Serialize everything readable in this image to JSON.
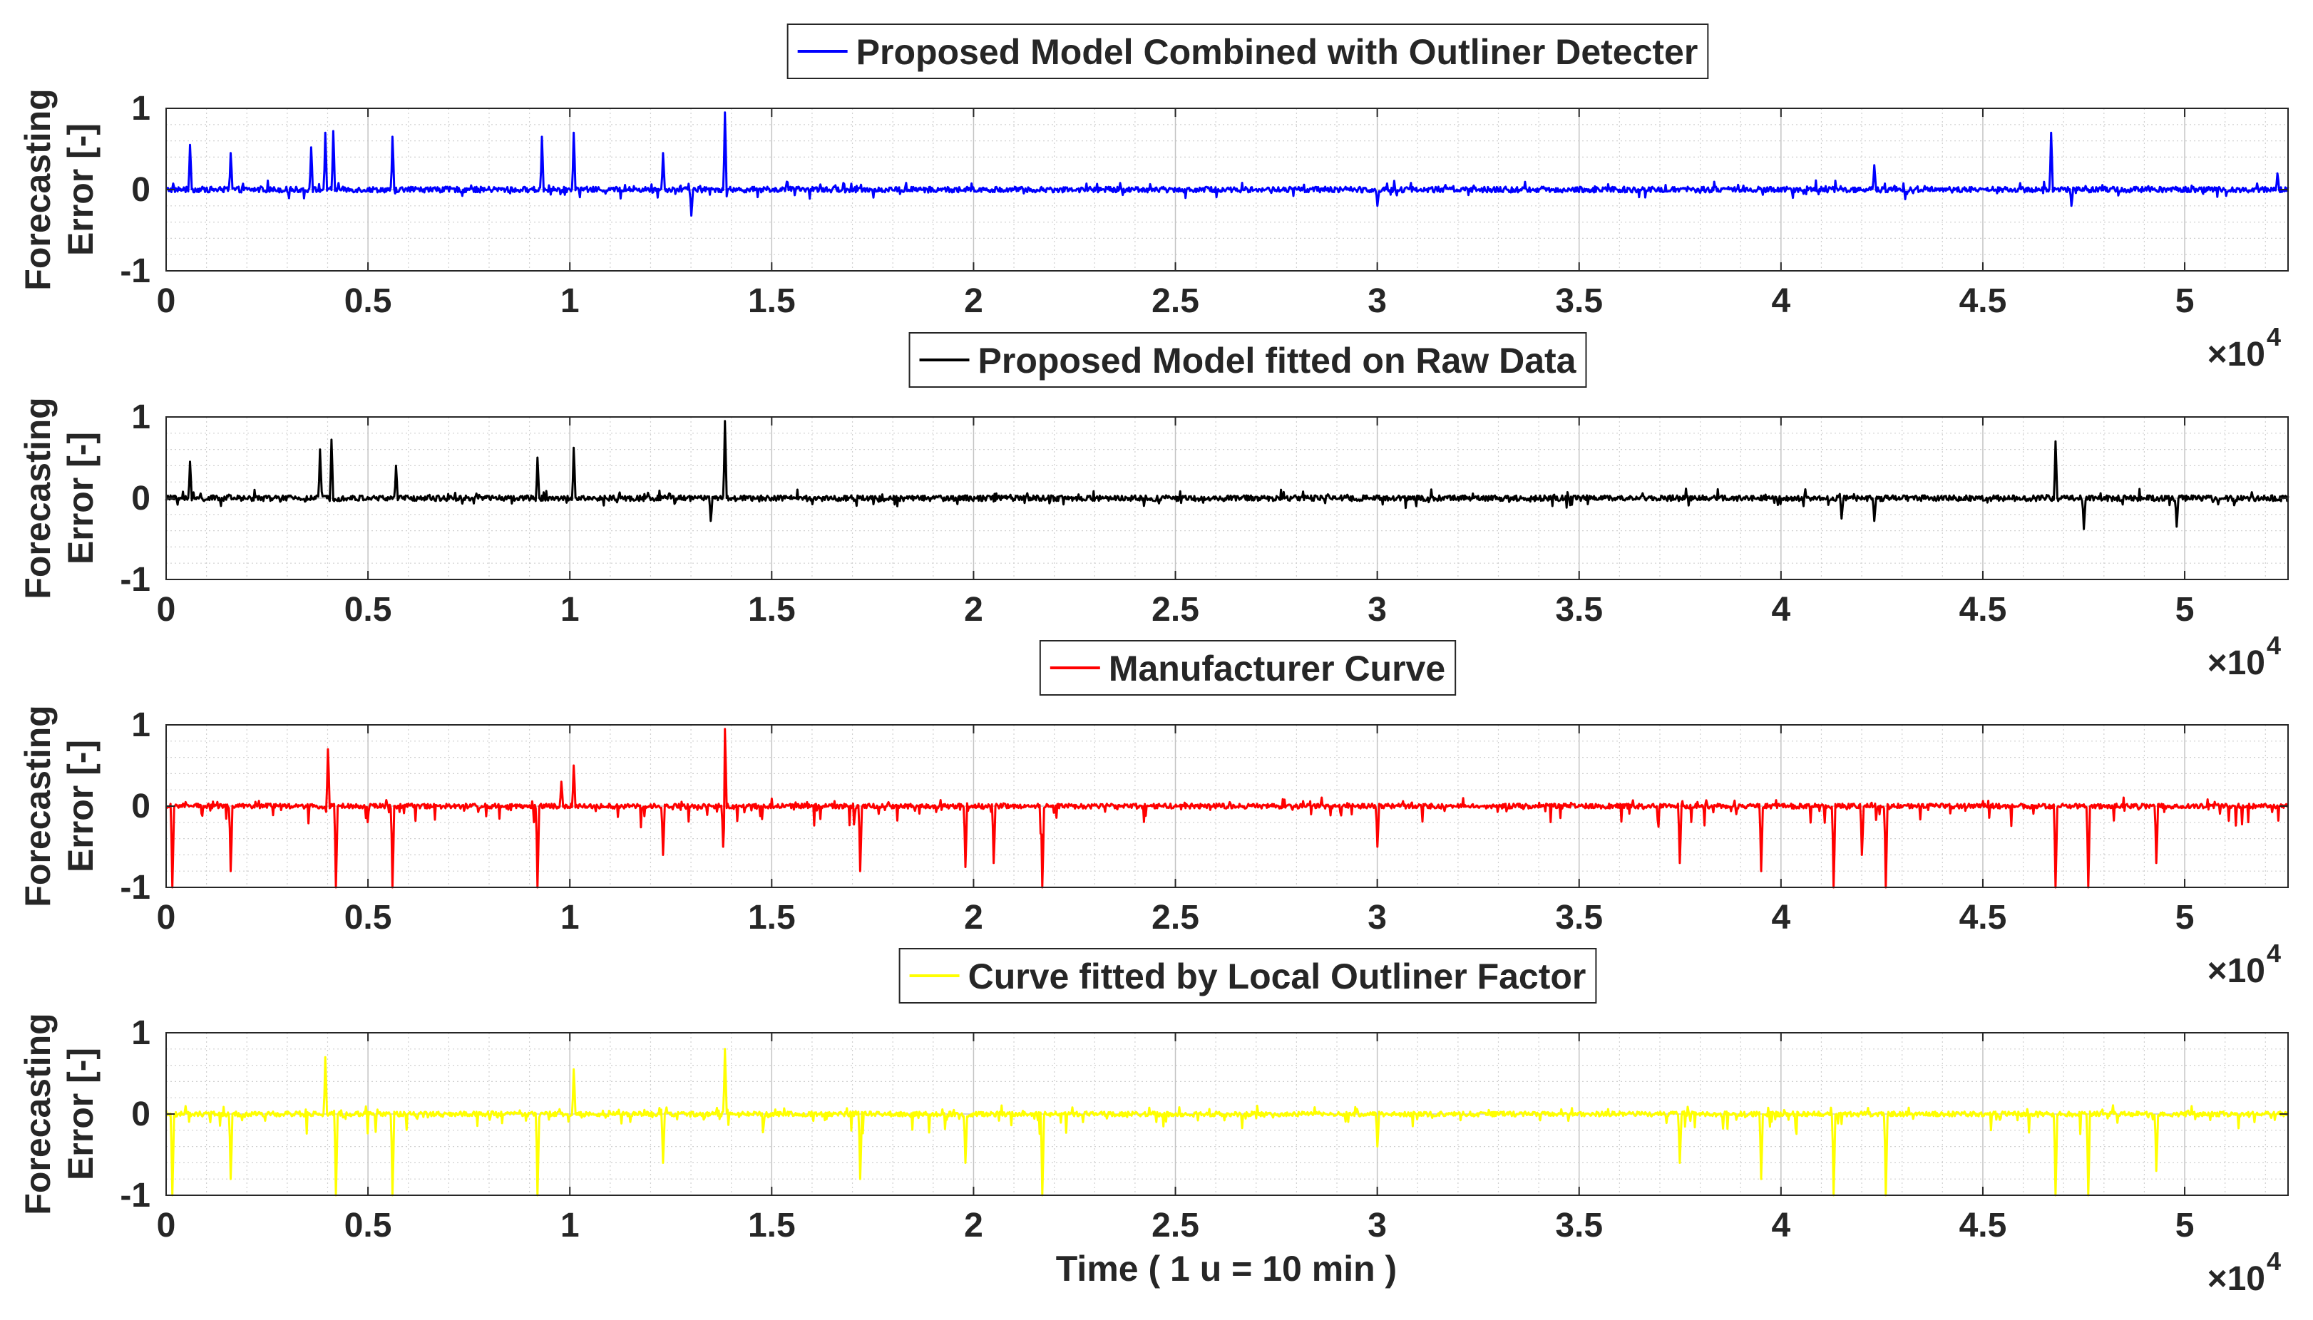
{
  "chart_data": [
    {
      "type": "line",
      "legend": "Proposed Model Combined with Outliner Detecter",
      "color": "#0000ff",
      "ylabel": [
        "Forecasting",
        "Error [-]"
      ],
      "xlabel": "",
      "xlim": [
        0,
        52560
      ],
      "ylim": [
        -1,
        1
      ],
      "x_tick_values": [
        0,
        5000,
        10000,
        15000,
        20000,
        25000,
        30000,
        35000,
        40000,
        45000,
        50000
      ],
      "x_tick_labels": [
        "0",
        "0.5",
        "1",
        "1.5",
        "2",
        "2.5",
        "3",
        "3.5",
        "4",
        "4.5",
        "5"
      ],
      "y_tick_values": [
        -1,
        0,
        1
      ],
      "y_tick_labels": [
        "-1",
        "0",
        "1"
      ],
      "x_exponent": "×10",
      "x_exponent_power": "4",
      "grid": true,
      "peaks": [
        {
          "x": 600,
          "y": 0.55
        },
        {
          "x": 1600,
          "y": 0.45
        },
        {
          "x": 3600,
          "y": 0.52
        },
        {
          "x": 3950,
          "y": 0.7
        },
        {
          "x": 4150,
          "y": 0.72
        },
        {
          "x": 5600,
          "y": 0.65
        },
        {
          "x": 9300,
          "y": 0.65
        },
        {
          "x": 10100,
          "y": 0.7
        },
        {
          "x": 12300,
          "y": 0.45
        },
        {
          "x": 13850,
          "y": 0.95
        },
        {
          "x": 13000,
          "y": -0.32
        },
        {
          "x": 30000,
          "y": -0.2
        },
        {
          "x": 42300,
          "y": 0.3
        },
        {
          "x": 46700,
          "y": 0.7
        },
        {
          "x": 47200,
          "y": -0.2
        },
        {
          "x": 52300,
          "y": 0.2
        }
      ]
    },
    {
      "type": "line",
      "legend": "Proposed Model fitted on Raw Data",
      "color": "#000000",
      "ylabel": [
        "Forecasting",
        "Error [-]"
      ],
      "xlabel": "",
      "xlim": [
        0,
        52560
      ],
      "ylim": [
        -1,
        1
      ],
      "x_tick_values": [
        0,
        5000,
        10000,
        15000,
        20000,
        25000,
        30000,
        35000,
        40000,
        45000,
        50000
      ],
      "x_tick_labels": [
        "0",
        "0.5",
        "1",
        "1.5",
        "2",
        "2.5",
        "3",
        "3.5",
        "4",
        "4.5",
        "5"
      ],
      "y_tick_values": [
        -1,
        0,
        1
      ],
      "y_tick_labels": [
        "-1",
        "0",
        "1"
      ],
      "x_exponent": "×10",
      "x_exponent_power": "4",
      "grid": true,
      "peaks": [
        {
          "x": 600,
          "y": 0.45
        },
        {
          "x": 3800,
          "y": 0.6
        },
        {
          "x": 4100,
          "y": 0.72
        },
        {
          "x": 5700,
          "y": 0.4
        },
        {
          "x": 9200,
          "y": 0.5
        },
        {
          "x": 10100,
          "y": 0.62
        },
        {
          "x": 13850,
          "y": 0.95
        },
        {
          "x": 13500,
          "y": -0.28
        },
        {
          "x": 41500,
          "y": -0.25
        },
        {
          "x": 42300,
          "y": -0.28
        },
        {
          "x": 46800,
          "y": 0.7
        },
        {
          "x": 47500,
          "y": -0.38
        },
        {
          "x": 49800,
          "y": -0.35
        }
      ]
    },
    {
      "type": "line",
      "legend": "Manufacturer Curve",
      "color": "#ff0000",
      "ylabel": [
        "Forecasting",
        "Error [-]"
      ],
      "xlabel": "",
      "xlim": [
        0,
        52560
      ],
      "ylim": [
        -1,
        1
      ],
      "x_tick_values": [
        0,
        5000,
        10000,
        15000,
        20000,
        25000,
        30000,
        35000,
        40000,
        45000,
        50000
      ],
      "x_tick_labels": [
        "0",
        "0.5",
        "1",
        "1.5",
        "2",
        "2.5",
        "3",
        "3.5",
        "4",
        "4.5",
        "5"
      ],
      "y_tick_values": [
        -1,
        0,
        1
      ],
      "y_tick_labels": [
        "-1",
        "0",
        "1"
      ],
      "x_exponent": "×10",
      "x_exponent_power": "4",
      "grid": true,
      "peaks": [
        {
          "x": 150,
          "y": -1.0
        },
        {
          "x": 1600,
          "y": -0.8
        },
        {
          "x": 4000,
          "y": 0.7
        },
        {
          "x": 4200,
          "y": -1.0
        },
        {
          "x": 5600,
          "y": -1.0
        },
        {
          "x": 9200,
          "y": -1.0
        },
        {
          "x": 9800,
          "y": 0.3
        },
        {
          "x": 10100,
          "y": 0.5
        },
        {
          "x": 12300,
          "y": -0.6
        },
        {
          "x": 13850,
          "y": 0.95
        },
        {
          "x": 13800,
          "y": -0.5
        },
        {
          "x": 17200,
          "y": -0.8
        },
        {
          "x": 19800,
          "y": -0.75
        },
        {
          "x": 20500,
          "y": -0.7
        },
        {
          "x": 21700,
          "y": -1.0
        },
        {
          "x": 30000,
          "y": -0.5
        },
        {
          "x": 37500,
          "y": -0.7
        },
        {
          "x": 39500,
          "y": -0.8
        },
        {
          "x": 41300,
          "y": -1.0
        },
        {
          "x": 42000,
          "y": -0.6
        },
        {
          "x": 42600,
          "y": -1.0
        },
        {
          "x": 46800,
          "y": -1.0
        },
        {
          "x": 47600,
          "y": -1.0
        },
        {
          "x": 49300,
          "y": -0.7
        }
      ]
    },
    {
      "type": "line",
      "legend": "Curve fitted by Local Outliner Factor",
      "color": "#ffff00",
      "ylabel": [
        "Forecasting",
        "Error [-]"
      ],
      "xlabel": "Time ( 1 u = 10 min )",
      "xlim": [
        0,
        52560
      ],
      "ylim": [
        -1,
        1
      ],
      "x_tick_values": [
        0,
        5000,
        10000,
        15000,
        20000,
        25000,
        30000,
        35000,
        40000,
        45000,
        50000
      ],
      "x_tick_labels": [
        "0",
        "0.5",
        "1",
        "1.5",
        "2",
        "2.5",
        "3",
        "3.5",
        "4",
        "4.5",
        "5"
      ],
      "y_tick_values": [
        -1,
        0,
        1
      ],
      "y_tick_labels": [
        "-1",
        "0",
        "1"
      ],
      "x_exponent": "×10",
      "x_exponent_power": "4",
      "grid": true,
      "peaks": [
        {
          "x": 150,
          "y": -1.0
        },
        {
          "x": 1600,
          "y": -0.8
        },
        {
          "x": 3950,
          "y": 0.7
        },
        {
          "x": 4200,
          "y": -1.0
        },
        {
          "x": 5600,
          "y": -1.0
        },
        {
          "x": 9200,
          "y": -1.0
        },
        {
          "x": 10100,
          "y": 0.55
        },
        {
          "x": 12300,
          "y": -0.6
        },
        {
          "x": 13850,
          "y": 0.8
        },
        {
          "x": 17200,
          "y": -0.8
        },
        {
          "x": 19800,
          "y": -0.6
        },
        {
          "x": 21700,
          "y": -1.0
        },
        {
          "x": 30000,
          "y": -0.4
        },
        {
          "x": 37500,
          "y": -0.6
        },
        {
          "x": 39500,
          "y": -0.8
        },
        {
          "x": 41300,
          "y": -1.0
        },
        {
          "x": 42600,
          "y": -1.0
        },
        {
          "x": 46800,
          "y": -1.0
        },
        {
          "x": 47600,
          "y": -1.0
        },
        {
          "x": 49300,
          "y": -0.7
        }
      ]
    }
  ]
}
